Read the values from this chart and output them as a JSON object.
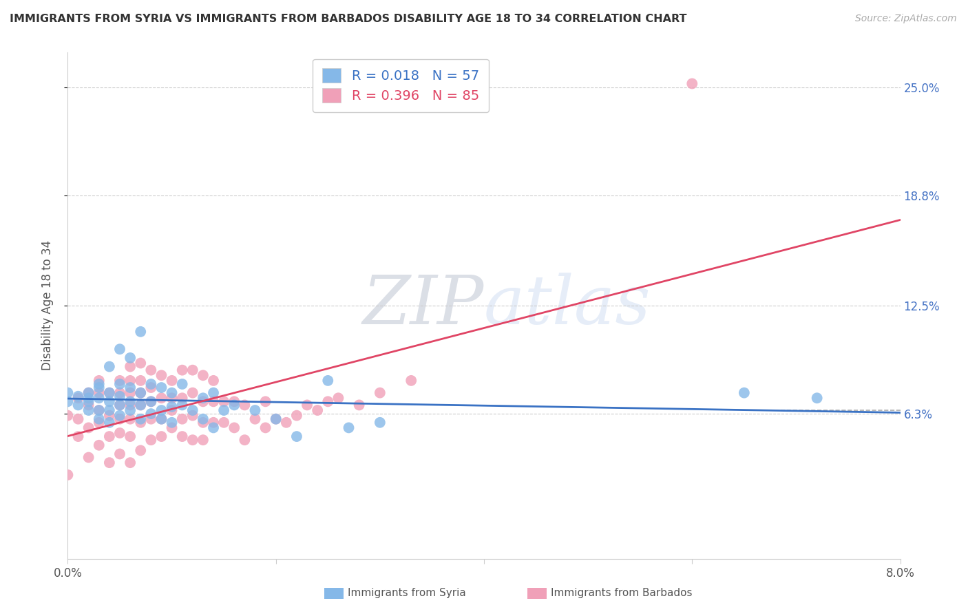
{
  "title": "IMMIGRANTS FROM SYRIA VS IMMIGRANTS FROM BARBADOS DISABILITY AGE 18 TO 34 CORRELATION CHART",
  "source": "Source: ZipAtlas.com",
  "ylabel": "Disability Age 18 to 34",
  "ytick_labels": [
    "6.3%",
    "12.5%",
    "18.8%",
    "25.0%"
  ],
  "ytick_values": [
    0.063,
    0.125,
    0.188,
    0.25
  ],
  "xlim": [
    0.0,
    0.08
  ],
  "ylim": [
    -0.02,
    0.27
  ],
  "syria_R": 0.018,
  "syria_N": 57,
  "barbados_R": 0.396,
  "barbados_N": 85,
  "syria_color": "#85b8e8",
  "barbados_color": "#f0a0b8",
  "syria_line_color": "#3a72c4",
  "barbados_line_color": "#e04565",
  "watermark_color": "#ccdff5",
  "grid_color": "#cccccc",
  "title_color": "#333333",
  "source_color": "#aaaaaa",
  "tick_label_color": "#555555",
  "right_tick_color": "#4472c4",
  "syria_x": [
    0.0,
    0.0,
    0.001,
    0.001,
    0.002,
    0.002,
    0.002,
    0.002,
    0.003,
    0.003,
    0.003,
    0.003,
    0.003,
    0.004,
    0.004,
    0.004,
    0.004,
    0.004,
    0.005,
    0.005,
    0.005,
    0.005,
    0.005,
    0.006,
    0.006,
    0.006,
    0.006,
    0.007,
    0.007,
    0.007,
    0.007,
    0.008,
    0.008,
    0.008,
    0.009,
    0.009,
    0.009,
    0.01,
    0.01,
    0.01,
    0.011,
    0.011,
    0.012,
    0.013,
    0.013,
    0.014,
    0.014,
    0.015,
    0.016,
    0.018,
    0.02,
    0.022,
    0.025,
    0.027,
    0.03,
    0.065,
    0.072
  ],
  "syria_y": [
    0.07,
    0.075,
    0.068,
    0.073,
    0.065,
    0.07,
    0.072,
    0.075,
    0.06,
    0.065,
    0.072,
    0.078,
    0.08,
    0.058,
    0.065,
    0.07,
    0.075,
    0.09,
    0.062,
    0.068,
    0.073,
    0.08,
    0.1,
    0.065,
    0.07,
    0.078,
    0.095,
    0.06,
    0.068,
    0.075,
    0.11,
    0.063,
    0.07,
    0.08,
    0.06,
    0.065,
    0.078,
    0.058,
    0.067,
    0.075,
    0.068,
    0.08,
    0.065,
    0.06,
    0.072,
    0.055,
    0.075,
    0.065,
    0.068,
    0.065,
    0.06,
    0.05,
    0.082,
    0.055,
    0.058,
    0.075,
    0.072
  ],
  "barbados_x": [
    0.0,
    0.0,
    0.001,
    0.001,
    0.001,
    0.002,
    0.002,
    0.002,
    0.002,
    0.003,
    0.003,
    0.003,
    0.003,
    0.003,
    0.004,
    0.004,
    0.004,
    0.004,
    0.005,
    0.005,
    0.005,
    0.005,
    0.005,
    0.005,
    0.006,
    0.006,
    0.006,
    0.006,
    0.006,
    0.006,
    0.006,
    0.007,
    0.007,
    0.007,
    0.007,
    0.007,
    0.007,
    0.008,
    0.008,
    0.008,
    0.008,
    0.008,
    0.009,
    0.009,
    0.009,
    0.009,
    0.01,
    0.01,
    0.01,
    0.01,
    0.011,
    0.011,
    0.011,
    0.011,
    0.012,
    0.012,
    0.012,
    0.012,
    0.013,
    0.013,
    0.013,
    0.013,
    0.014,
    0.014,
    0.014,
    0.015,
    0.015,
    0.016,
    0.016,
    0.017,
    0.017,
    0.018,
    0.019,
    0.019,
    0.02,
    0.021,
    0.022,
    0.023,
    0.024,
    0.025,
    0.026,
    0.028,
    0.03,
    0.033,
    0.06
  ],
  "barbados_y": [
    0.028,
    0.062,
    0.05,
    0.06,
    0.072,
    0.038,
    0.055,
    0.068,
    0.075,
    0.045,
    0.058,
    0.065,
    0.075,
    0.082,
    0.035,
    0.05,
    0.062,
    0.075,
    0.04,
    0.052,
    0.06,
    0.068,
    0.075,
    0.082,
    0.035,
    0.05,
    0.06,
    0.068,
    0.075,
    0.082,
    0.09,
    0.042,
    0.058,
    0.068,
    0.075,
    0.082,
    0.092,
    0.048,
    0.06,
    0.07,
    0.078,
    0.088,
    0.05,
    0.06,
    0.072,
    0.085,
    0.055,
    0.065,
    0.072,
    0.082,
    0.05,
    0.06,
    0.072,
    0.088,
    0.048,
    0.062,
    0.075,
    0.088,
    0.048,
    0.058,
    0.07,
    0.085,
    0.058,
    0.07,
    0.082,
    0.058,
    0.07,
    0.055,
    0.07,
    0.048,
    0.068,
    0.06,
    0.055,
    0.07,
    0.06,
    0.058,
    0.062,
    0.068,
    0.065,
    0.07,
    0.072,
    0.068,
    0.075,
    0.082,
    0.252
  ],
  "dashed_line_y": 0.071,
  "dashed_line_x_start": 0.065,
  "dashed_line_x_end": 0.08
}
